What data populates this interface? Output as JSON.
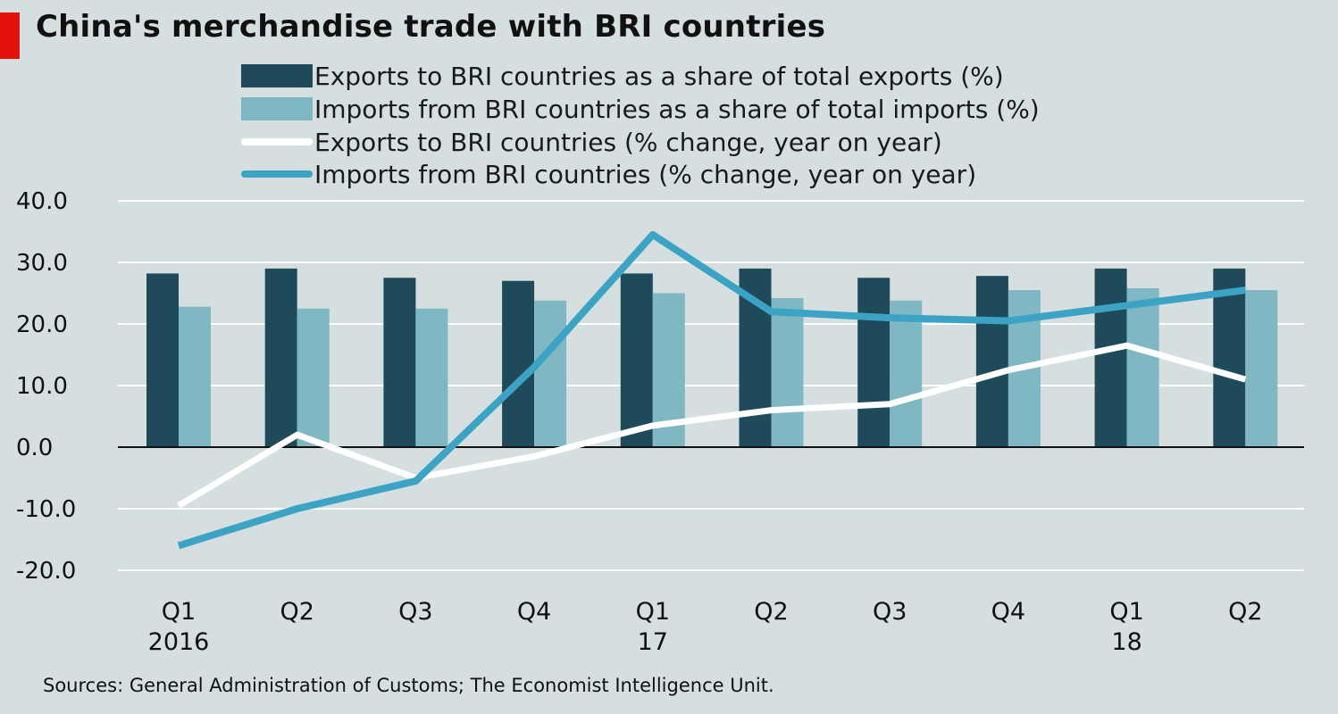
{
  "header": {
    "title": "China's merchandise  trade with BRI countries"
  },
  "legend": [
    {
      "label": "Exports to BRI countries as a share of total exports (%)",
      "color": "#1e4a5a",
      "kind": "bar"
    },
    {
      "label": "Imports from BRI countries as a share of total imports (%)",
      "color": "#7fb7c3",
      "kind": "bar"
    },
    {
      "label": "Exports to BRI countries (% change, year on year)",
      "color": "#ffffff",
      "kind": "line"
    },
    {
      "label": "Imports from BRI countries (% change, year on year)",
      "color": "#3da3c4",
      "kind": "line"
    }
  ],
  "chart_data": {
    "type": "bar+line",
    "categories": [
      "Q1\n2016",
      "Q2",
      "Q3",
      "Q4",
      "Q1\n17",
      "Q2",
      "Q3",
      "Q4",
      "Q1\n18",
      "Q2"
    ],
    "ylim": [
      -20,
      40
    ],
    "yticks": [
      "40.0",
      "30.0",
      "20.0",
      "10.0",
      "0.0",
      "-10.0",
      "-20.0"
    ],
    "grid": true,
    "legend_position": "top",
    "series": [
      {
        "name": "Exports to BRI countries as a share of total exports (%)",
        "type": "bar",
        "color": "#1e4a5a",
        "values": [
          28.2,
          29.0,
          27.5,
          27.0,
          28.2,
          29.0,
          27.5,
          27.8,
          29.0,
          29.0
        ]
      },
      {
        "name": "Imports from BRI countries as a share of total imports (%)",
        "type": "bar",
        "color": "#7fb7c3",
        "values": [
          22.8,
          22.5,
          22.5,
          23.8,
          25.0,
          24.2,
          23.8,
          25.5,
          25.8,
          25.5
        ]
      },
      {
        "name": "Exports to BRI countries (% change, year on year)",
        "type": "line",
        "color": "#ffffff",
        "values": [
          -9.5,
          2.0,
          -5.0,
          -1.5,
          3.5,
          6.0,
          7.0,
          12.5,
          16.5,
          11.0
        ]
      },
      {
        "name": "Imports from BRI countries (% change, year on year)",
        "type": "line",
        "color": "#3da3c4",
        "values": [
          -16.0,
          -10.0,
          -5.5,
          13.0,
          34.5,
          22.0,
          21.0,
          20.5,
          23.0,
          25.5
        ]
      }
    ]
  },
  "footer": {
    "source": "Sources: General Administration of Customs; The Economist Intelligence Unit."
  }
}
